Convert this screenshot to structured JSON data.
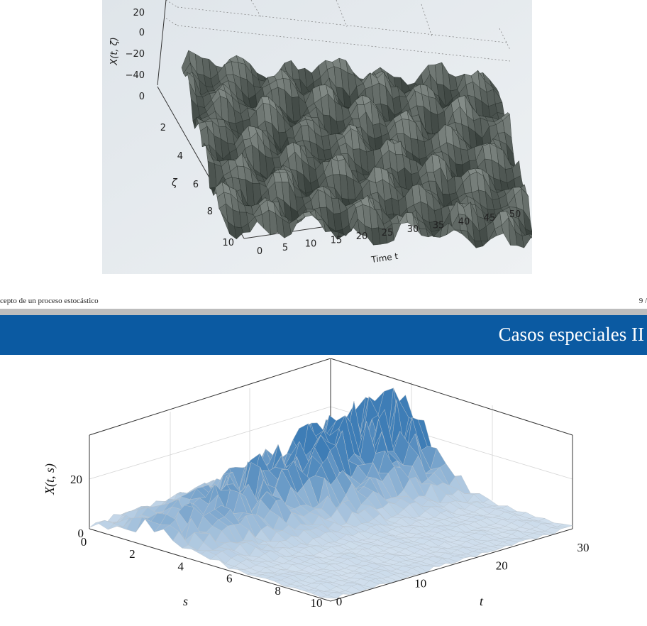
{
  "slide_top": {
    "z_label": "X(t, ζ)",
    "z_ticks": [
      "20",
      "0",
      "−20",
      "−40"
    ],
    "zeta_label": "ζ",
    "zeta_ticks": [
      "0",
      "2",
      "4",
      "6",
      "8",
      "10"
    ],
    "time_label": "Time t",
    "time_ticks": [
      "0",
      "5",
      "10",
      "15",
      "20",
      "25",
      "30",
      "35",
      "40",
      "45",
      "50"
    ],
    "footer_label": "cepto de un proceso estocástico",
    "page_number": "9 /"
  },
  "slide_bottom": {
    "title": "Casos especiales II",
    "z_label": "X(t, s)",
    "z_ticks": [
      "20",
      "0"
    ],
    "s_label": "s",
    "s_ticks": [
      "0",
      "2",
      "4",
      "6",
      "8",
      "10"
    ],
    "t_label": "t",
    "t_ticks": [
      "0",
      "10",
      "20",
      "30"
    ],
    "colors": {
      "surface_high": "#3e7db6",
      "surface_low": "#d4e1ee",
      "grid": "#c8c8c8",
      "title_bar": "#0b5aa2"
    }
  }
}
